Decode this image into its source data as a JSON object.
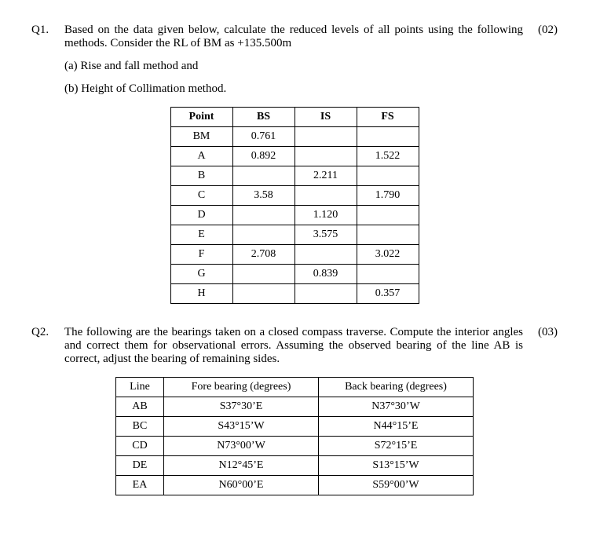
{
  "q1": {
    "num": "Q1.",
    "text": "Based on the data given below, calculate the reduced levels of all points using the following methods. Consider the RL of BM as +135.500m",
    "marks": "(02)",
    "sub_a": "(a) Rise and fall method and",
    "sub_b": "(b) Height of Collimation method.",
    "table": {
      "headers": [
        "Point",
        "BS",
        "IS",
        "FS"
      ],
      "rows": [
        [
          "BM",
          "0.761",
          "",
          ""
        ],
        [
          "A",
          "0.892",
          "",
          "1.522"
        ],
        [
          "B",
          "",
          "2.211",
          ""
        ],
        [
          "C",
          "3.58",
          "",
          "1.790"
        ],
        [
          "D",
          "",
          "1.120",
          ""
        ],
        [
          "E",
          "",
          "3.575",
          ""
        ],
        [
          "F",
          "2.708",
          "",
          "3.022"
        ],
        [
          "G",
          "",
          "0.839",
          ""
        ],
        [
          "H",
          "",
          "",
          "0.357"
        ]
      ]
    }
  },
  "q2": {
    "num": "Q2.",
    "text": "The following are the bearings taken on a closed compass traverse. Compute the interior angles and correct them for observational errors. Assuming the observed bearing of the line AB is correct, adjust the bearing of remaining sides.",
    "marks": "(03)",
    "table": {
      "headers": [
        "Line",
        "Fore bearing (degrees)",
        "Back bearing (degrees)"
      ],
      "rows": [
        [
          "AB",
          "S37°30’E",
          "N37°30’W"
        ],
        [
          "BC",
          "S43°15’W",
          "N44°15’E"
        ],
        [
          "CD",
          "N73°00’W",
          "S72°15’E"
        ],
        [
          "DE",
          "N12°45’E",
          "S13°15’W"
        ],
        [
          "EA",
          "N60°00’E",
          "S59°00’W"
        ]
      ]
    }
  }
}
